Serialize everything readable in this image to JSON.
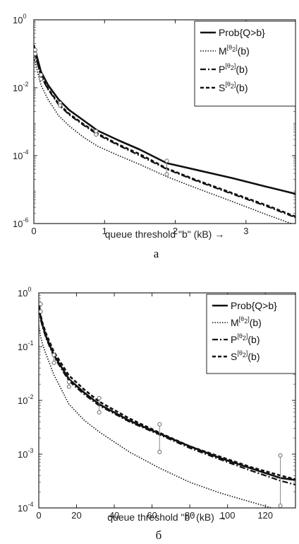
{
  "chart_data": [
    {
      "type": "line",
      "caption": "а",
      "xlabel": "queue threshold \"b\" (kB) →",
      "xlim": [
        0,
        3.7
      ],
      "ylim": [
        1e-06,
        1
      ],
      "yscale": "log",
      "xticks": [
        0,
        1,
        2,
        3
      ],
      "yticks": [
        {
          "value": 1,
          "mant": "10",
          "exp": "0"
        },
        {
          "value": 0.01,
          "mant": "10",
          "exp": "-2"
        },
        {
          "value": 0.0001,
          "mant": "10",
          "exp": "-4"
        },
        {
          "value": 1e-06,
          "mant": "10",
          "exp": "-6"
        }
      ],
      "legend_position": "top-right",
      "legend": [
        {
          "label": "Prob{Q>b}"
        },
        {
          "base": "M",
          "sup": "[θ",
          "sub": "2",
          "tail": "]",
          "arg": "(b)"
        },
        {
          "base": "P",
          "sup": "[θ",
          "sub": "2",
          "tail": "]",
          "arg": "(b)"
        },
        {
          "base": "S",
          "sup": "[θ",
          "sub": "2",
          "tail": "]",
          "arg": "(b)"
        }
      ],
      "series": [
        {
          "style": "solid",
          "x": [
            0,
            0.1,
            0.2,
            0.35,
            0.5,
            0.7,
            0.9,
            1.2,
            1.5,
            1.88,
            2.3,
            2.8,
            3.3,
            3.7
          ],
          "y": [
            0.18,
            0.03,
            0.012,
            0.0045,
            0.0022,
            0.0011,
            0.00055,
            0.00028,
            0.00015,
            6e-05,
            3.8e-05,
            2.2e-05,
            1.2e-05,
            7.5e-06
          ]
        },
        {
          "style": "dotted",
          "x": [
            0,
            0.1,
            0.2,
            0.35,
            0.5,
            0.7,
            0.9,
            1.2,
            1.5,
            1.88,
            2.3,
            2.8,
            3.3,
            3.7
          ],
          "y": [
            0.08,
            0.012,
            0.0045,
            0.0015,
            0.00075,
            0.00035,
            0.00019,
            0.0001,
            5.5e-05,
            2.4e-05,
            1.1e-05,
            4.5e-06,
            1.8e-06,
            9e-07
          ]
        },
        {
          "style": "dashdot",
          "x": [
            0,
            0.1,
            0.2,
            0.35,
            0.5,
            0.7,
            0.9,
            1.2,
            1.5,
            1.88,
            2.3,
            2.8,
            3.3,
            3.7
          ],
          "y": [
            0.13,
            0.022,
            0.009,
            0.0032,
            0.0016,
            0.0008,
            0.00042,
            0.0002,
            0.0001,
            4e-05,
            1.8e-05,
            7.5e-06,
            3.2e-06,
            1.5e-06
          ]
        },
        {
          "style": "dashed",
          "x": [
            0,
            0.1,
            0.2,
            0.35,
            0.5,
            0.7,
            0.9,
            1.2,
            1.5,
            1.88,
            2.3,
            2.8,
            3.3,
            3.7
          ],
          "y": [
            0.14,
            0.023,
            0.0095,
            0.0034,
            0.0017,
            0.00085,
            0.00045,
            0.00021,
            0.00011,
            4.2e-05,
            1.9e-05,
            8e-06,
            3.4e-06,
            1.6e-06
          ]
        }
      ],
      "error_bars": [
        {
          "x": 0.02,
          "low": 0.1,
          "high": 0.13
        },
        {
          "x": 0.1,
          "low": 0.018,
          "high": 0.024
        },
        {
          "x": 0.37,
          "low": 0.003,
          "high": 0.0035
        },
        {
          "x": 0.88,
          "low": 0.00042,
          "high": 0.00052
        },
        {
          "x": 1.88,
          "low": 2.8e-05,
          "high": 7e-05
        }
      ]
    },
    {
      "type": "line",
      "caption": "б",
      "xlabel": "queue threshold \"b\" (kB) →",
      "xlim": [
        0,
        136
      ],
      "ylim": [
        0.0001,
        1
      ],
      "yscale": "log",
      "xticks": [
        0,
        20,
        40,
        60,
        80,
        100,
        120
      ],
      "yticks": [
        {
          "value": 1,
          "mant": "10",
          "exp": "0"
        },
        {
          "value": 0.1,
          "mant": "10",
          "exp": "-1"
        },
        {
          "value": 0.01,
          "mant": "10",
          "exp": "-2"
        },
        {
          "value": 0.001,
          "mant": "10",
          "exp": "-3"
        },
        {
          "value": 0.0001,
          "mant": "10",
          "exp": "-4"
        }
      ],
      "legend_position": "top-right",
      "legend": [
        {
          "label": "Prob{Q>b}"
        },
        {
          "base": "M",
          "sup": "[θ",
          "sub": "2",
          "tail": "]",
          "arg": "(b)"
        },
        {
          "base": "P",
          "sup": "[θ",
          "sub": "2",
          "tail": "]",
          "arg": "(b)"
        },
        {
          "base": "S",
          "sup": "[θ",
          "sub": "2",
          "tail": "]",
          "arg": "(b)"
        }
      ],
      "series": [
        {
          "style": "solid",
          "x": [
            0,
            1,
            2,
            4,
            8,
            16,
            24,
            32,
            48,
            64,
            80,
            96,
            112,
            128,
            136
          ],
          "y": [
            0.55,
            0.35,
            0.25,
            0.15,
            0.07,
            0.025,
            0.014,
            0.0085,
            0.0042,
            0.0024,
            0.0014,
            0.00085,
            0.00055,
            0.00036,
            0.00033
          ]
        },
        {
          "style": "dotted",
          "x": [
            0,
            1,
            2,
            4,
            8,
            16,
            24,
            32,
            48,
            64,
            80,
            96,
            112,
            128,
            136
          ],
          "y": [
            0.25,
            0.15,
            0.11,
            0.07,
            0.03,
            0.0085,
            0.0043,
            0.0026,
            0.0011,
            0.00055,
            0.0003,
            0.00019,
            0.00013,
            9e-05,
            7.5e-05
          ]
        },
        {
          "style": "dashdot",
          "x": [
            0,
            1,
            2,
            4,
            8,
            16,
            24,
            32,
            48,
            64,
            80,
            96,
            112,
            128,
            136
          ],
          "y": [
            0.5,
            0.32,
            0.23,
            0.14,
            0.065,
            0.023,
            0.013,
            0.008,
            0.004,
            0.0023,
            0.0013,
            0.0008,
            0.0005,
            0.00032,
            0.00027
          ]
        },
        {
          "style": "dashed",
          "x": [
            0,
            1,
            2,
            4,
            8,
            16,
            24,
            32,
            48,
            64,
            80,
            96,
            112,
            128,
            136
          ],
          "y": [
            0.6,
            0.38,
            0.27,
            0.17,
            0.08,
            0.029,
            0.016,
            0.0095,
            0.0046,
            0.0025,
            0.0014,
            0.0009,
            0.00058,
            0.0004,
            0.00034
          ]
        }
      ],
      "error_bars": [
        {
          "x": 1,
          "low": 0.45,
          "high": 0.62
        },
        {
          "x": 8,
          "low": 0.05,
          "high": 0.07
        },
        {
          "x": 16,
          "low": 0.018,
          "high": 0.022
        },
        {
          "x": 32,
          "low": 0.006,
          "high": 0.011
        },
        {
          "x": 64,
          "low": 0.0011,
          "high": 0.0036
        },
        {
          "x": 128,
          "low": 0.00011,
          "high": 0.00095
        }
      ]
    }
  ]
}
